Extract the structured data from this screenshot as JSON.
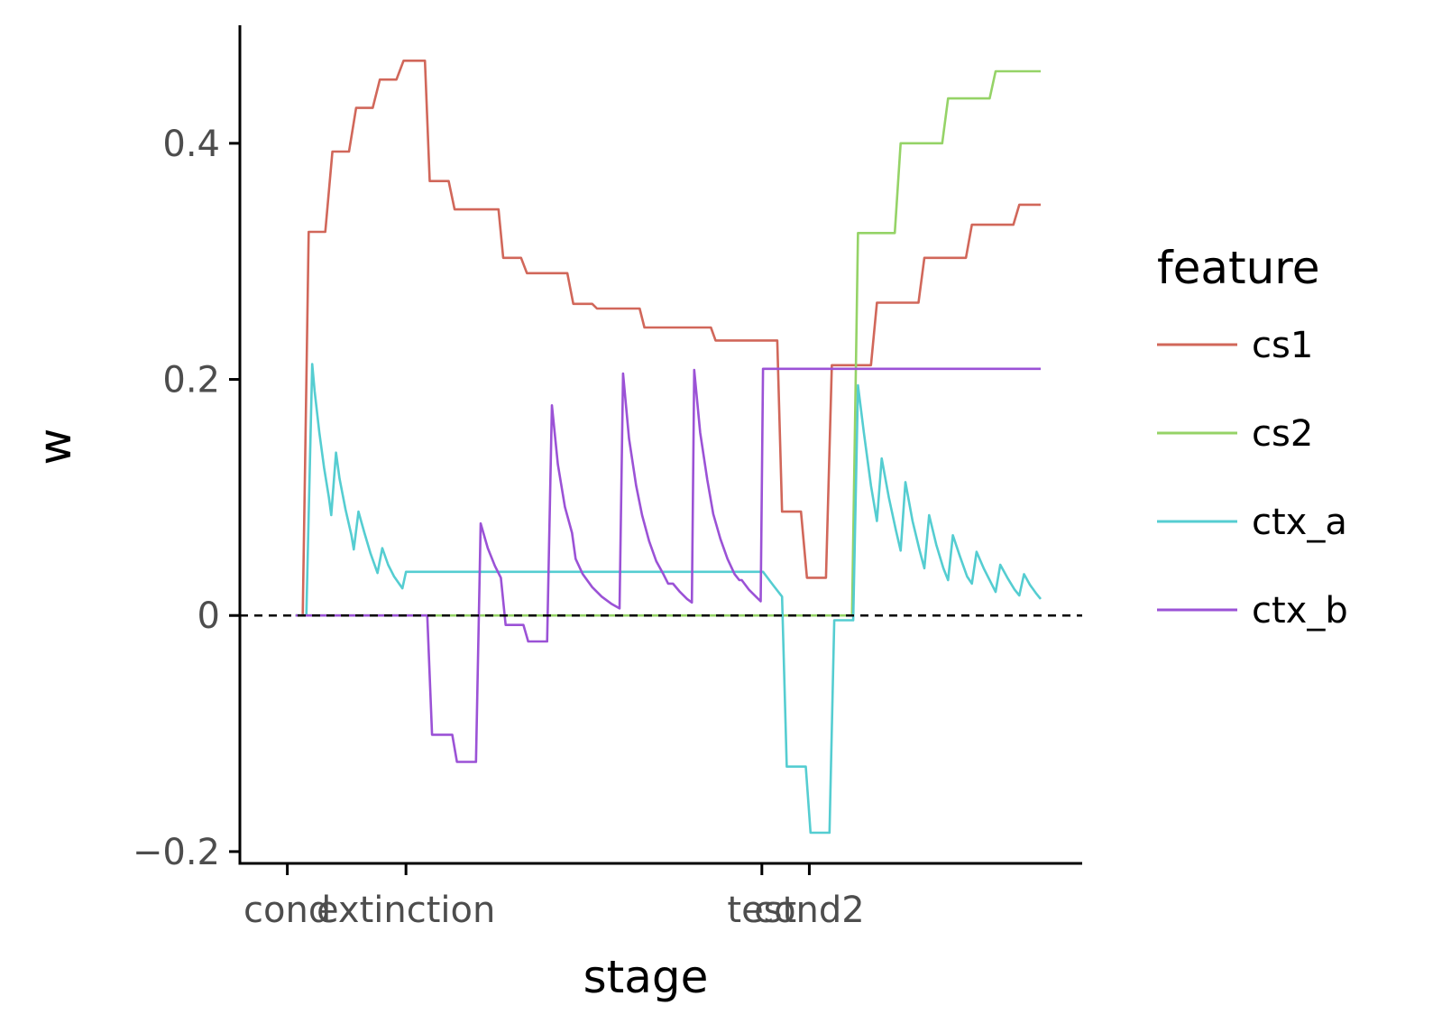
{
  "chart_data": {
    "type": "line",
    "xlabel": "stage",
    "ylabel": "w",
    "ylim": [
      -0.21,
      0.5
    ],
    "xlim": [
      -2,
      33.5
    ],
    "x_ticks": [
      {
        "label": "cond",
        "value": 0
      },
      {
        "label": "extinction",
        "value": 5
      },
      {
        "label": "test",
        "value": 20
      },
      {
        "label": "cond2",
        "value": 22
      }
    ],
    "y_ticks": [
      {
        "label": "−0.2",
        "value": -0.2
      },
      {
        "label": "0",
        "value": 0
      },
      {
        "label": "0.2",
        "value": 0.2
      },
      {
        "label": "0.4",
        "value": 0.4
      }
    ],
    "reference_line": {
      "y": 0,
      "style": "dashed"
    },
    "grid": false,
    "legend": {
      "title": "feature",
      "position": "right"
    },
    "series": [
      {
        "name": "cs1",
        "color": "#d1675a",
        "points": [
          [
            0.35,
            0
          ],
          [
            0.65,
            0
          ],
          [
            0.9,
            0.325
          ],
          [
            1.6,
            0.325
          ],
          [
            1.9,
            0.393
          ],
          [
            2.6,
            0.393
          ],
          [
            2.9,
            0.43
          ],
          [
            3.6,
            0.43
          ],
          [
            3.9,
            0.454
          ],
          [
            4.6,
            0.454
          ],
          [
            4.9,
            0.47
          ],
          [
            5.8,
            0.47
          ],
          [
            6.0,
            0.368
          ],
          [
            6.8,
            0.368
          ],
          [
            7.05,
            0.344
          ],
          [
            8.9,
            0.344
          ],
          [
            9.1,
            0.303
          ],
          [
            9.85,
            0.303
          ],
          [
            10.1,
            0.29
          ],
          [
            11.8,
            0.29
          ],
          [
            12.05,
            0.264
          ],
          [
            12.85,
            0.264
          ],
          [
            13.05,
            0.26
          ],
          [
            14.85,
            0.26
          ],
          [
            15.05,
            0.244
          ],
          [
            17.85,
            0.244
          ],
          [
            18.05,
            0.233
          ],
          [
            20.65,
            0.233
          ],
          [
            20.85,
            0.088
          ],
          [
            21.65,
            0.088
          ],
          [
            21.9,
            0.032
          ],
          [
            22.7,
            0.032
          ],
          [
            22.95,
            0.212
          ],
          [
            24.6,
            0.212
          ],
          [
            24.85,
            0.265
          ],
          [
            26.6,
            0.265
          ],
          [
            26.85,
            0.303
          ],
          [
            28.6,
            0.303
          ],
          [
            28.85,
            0.331
          ],
          [
            30.6,
            0.331
          ],
          [
            30.85,
            0.348
          ],
          [
            31.75,
            0.348
          ]
        ]
      },
      {
        "name": "cs2",
        "color": "#95d367",
        "points": [
          [
            0.35,
            0
          ],
          [
            23.8,
            0
          ],
          [
            24.05,
            0.324
          ],
          [
            25.6,
            0.324
          ],
          [
            25.85,
            0.4
          ],
          [
            27.6,
            0.4
          ],
          [
            27.85,
            0.438
          ],
          [
            29.6,
            0.438
          ],
          [
            29.85,
            0.461
          ],
          [
            31.75,
            0.461
          ]
        ]
      },
      {
        "name": "ctx_a",
        "color": "#55cdd1",
        "points": [
          [
            0.35,
            0
          ],
          [
            0.8,
            0
          ],
          [
            1.05,
            0.213
          ],
          [
            1.15,
            0.19
          ],
          [
            1.35,
            0.155
          ],
          [
            1.55,
            0.125
          ],
          [
            1.75,
            0.1
          ],
          [
            1.85,
            0.085
          ],
          [
            2.05,
            0.138
          ],
          [
            2.2,
            0.116
          ],
          [
            2.45,
            0.09
          ],
          [
            2.7,
            0.068
          ],
          [
            2.8,
            0.056
          ],
          [
            3.0,
            0.088
          ],
          [
            3.25,
            0.07
          ],
          [
            3.5,
            0.053
          ],
          [
            3.8,
            0.036
          ],
          [
            4.0,
            0.057
          ],
          [
            4.25,
            0.043
          ],
          [
            4.5,
            0.033
          ],
          [
            4.85,
            0.023
          ],
          [
            5.0,
            0.037
          ],
          [
            20.05,
            0.037
          ],
          [
            20.5,
            0.025
          ],
          [
            20.85,
            0.016
          ],
          [
            21.05,
            -0.128
          ],
          [
            21.85,
            -0.128
          ],
          [
            22.05,
            -0.184
          ],
          [
            22.85,
            -0.184
          ],
          [
            23.05,
            -0.004
          ],
          [
            23.85,
            -0.004
          ],
          [
            24.05,
            0.195
          ],
          [
            24.3,
            0.155
          ],
          [
            24.6,
            0.11
          ],
          [
            24.85,
            0.08
          ],
          [
            25.05,
            0.133
          ],
          [
            25.35,
            0.1
          ],
          [
            25.65,
            0.072
          ],
          [
            25.85,
            0.055
          ],
          [
            26.05,
            0.113
          ],
          [
            26.35,
            0.08
          ],
          [
            26.65,
            0.055
          ],
          [
            26.85,
            0.04
          ],
          [
            27.05,
            0.085
          ],
          [
            27.35,
            0.06
          ],
          [
            27.65,
            0.04
          ],
          [
            27.85,
            0.03
          ],
          [
            28.05,
            0.068
          ],
          [
            28.35,
            0.05
          ],
          [
            28.65,
            0.033
          ],
          [
            28.85,
            0.027
          ],
          [
            29.05,
            0.054
          ],
          [
            29.35,
            0.04
          ],
          [
            29.65,
            0.028
          ],
          [
            29.85,
            0.02
          ],
          [
            30.05,
            0.043
          ],
          [
            30.35,
            0.032
          ],
          [
            30.65,
            0.022
          ],
          [
            30.85,
            0.017
          ],
          [
            31.05,
            0.035
          ],
          [
            31.3,
            0.026
          ],
          [
            31.55,
            0.019
          ],
          [
            31.75,
            0.014
          ]
        ]
      },
      {
        "name": "ctx_b",
        "color": "#9b52d6",
        "points": [
          [
            0.35,
            0
          ],
          [
            5.9,
            0
          ],
          [
            6.1,
            -0.101
          ],
          [
            6.95,
            -0.101
          ],
          [
            7.15,
            -0.124
          ],
          [
            7.95,
            -0.124
          ],
          [
            8.15,
            0.078
          ],
          [
            8.45,
            0.057
          ],
          [
            8.75,
            0.042
          ],
          [
            9.0,
            0.032
          ],
          [
            9.2,
            -0.008
          ],
          [
            9.95,
            -0.008
          ],
          [
            10.15,
            -0.022
          ],
          [
            10.95,
            -0.022
          ],
          [
            11.15,
            0.178
          ],
          [
            11.4,
            0.128
          ],
          [
            11.7,
            0.092
          ],
          [
            12.0,
            0.07
          ],
          [
            12.15,
            0.048
          ],
          [
            12.45,
            0.035
          ],
          [
            12.85,
            0.024
          ],
          [
            13.25,
            0.016
          ],
          [
            13.65,
            0.01
          ],
          [
            14.0,
            0.006
          ],
          [
            14.15,
            0.205
          ],
          [
            14.4,
            0.15
          ],
          [
            14.7,
            0.11
          ],
          [
            14.95,
            0.085
          ],
          [
            15.25,
            0.063
          ],
          [
            15.55,
            0.046
          ],
          [
            15.85,
            0.035
          ],
          [
            16.05,
            0.027
          ],
          [
            16.25,
            0.027
          ],
          [
            16.55,
            0.02
          ],
          [
            16.85,
            0.014
          ],
          [
            17.05,
            0.011
          ],
          [
            17.15,
            0.208
          ],
          [
            17.4,
            0.155
          ],
          [
            17.7,
            0.115
          ],
          [
            17.95,
            0.086
          ],
          [
            18.25,
            0.065
          ],
          [
            18.55,
            0.048
          ],
          [
            18.85,
            0.035
          ],
          [
            19.05,
            0.03
          ],
          [
            19.15,
            0.03
          ],
          [
            19.45,
            0.022
          ],
          [
            19.75,
            0.016
          ],
          [
            19.95,
            0.012
          ],
          [
            20.05,
            0.209
          ],
          [
            31.75,
            0.209
          ]
        ]
      }
    ]
  }
}
